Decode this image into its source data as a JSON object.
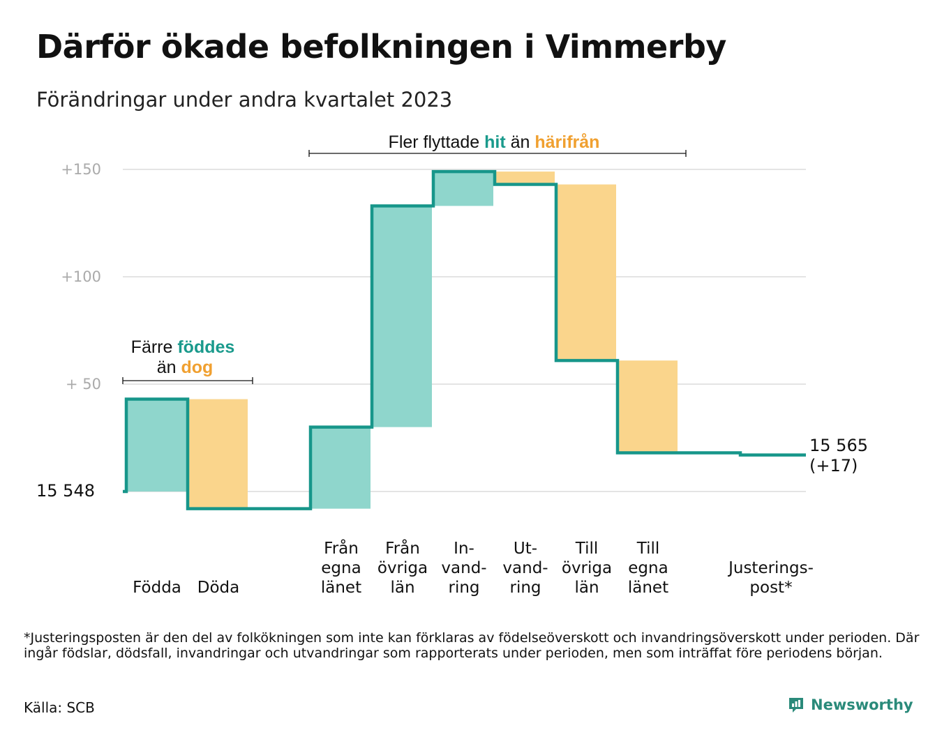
{
  "title": "Därför ökade befolkningen i Vimmerby",
  "subtitle": "Förändringar under andra kvartalet 2023",
  "chart_data": {
    "type": "waterfall",
    "start_value": 15548,
    "start_label": "15  548",
    "end_value": 15565,
    "end_label": [
      "15 565",
      "(+17)"
    ],
    "ylim": [
      -8,
      150
    ],
    "yticks": [
      {
        "value": 50,
        "label": "+  50"
      },
      {
        "value": 100,
        "label": "+100"
      },
      {
        "value": 150,
        "label": "+150"
      }
    ],
    "grid": true,
    "steps": [
      {
        "label": [
          "",
          "",
          "Födda"
        ],
        "change": 43,
        "kind": "in"
      },
      {
        "label": [
          "",
          "",
          "Döda"
        ],
        "change": -51,
        "kind": "out"
      },
      {
        "label": [],
        "change": 0,
        "kind": "gap"
      },
      {
        "label": [
          "Från",
          "egna",
          "länet"
        ],
        "change": 38,
        "kind": "in"
      },
      {
        "label": [
          "Från",
          "övriga",
          "län"
        ],
        "change": 103,
        "kind": "in"
      },
      {
        "label": [
          "In-",
          "vand-",
          "ring"
        ],
        "change": 16,
        "kind": "in"
      },
      {
        "label": [
          "Ut-",
          "vand-",
          "ring"
        ],
        "change": -6,
        "kind": "out"
      },
      {
        "label": [
          "Till",
          "övriga",
          "län"
        ],
        "change": -82,
        "kind": "out"
      },
      {
        "label": [
          "Till",
          "egna",
          "länet"
        ],
        "change": -43,
        "kind": "out"
      },
      {
        "label": [],
        "change": 0,
        "kind": "gap"
      },
      {
        "label": [
          "",
          "Justerings-",
          "post*"
        ],
        "change": -1,
        "kind": "adjust"
      }
    ],
    "annotations": {
      "births": {
        "line1_prefix": "Färre ",
        "line1_strong": "föddes",
        "line2_prefix": "än ",
        "line2_strong": "dog"
      },
      "moves": {
        "prefix": "Fler flyttade ",
        "strong1": "hit",
        "middle": " än ",
        "strong2": "härifrån"
      }
    },
    "colors": {
      "line": "#17968a",
      "in_fill": "#8fd6cc",
      "out_fill": "#fad58c",
      "in_text": "#1a9a8c",
      "out_text": "#f0a030",
      "grid": "#e4e4e4",
      "tick_text": "#aaaaaa"
    }
  },
  "footnote": "*Justeringsposten är den del av folkökningen som inte kan förklaras av födelseöverskott och invandringsöverskott under perioden. Där ingår födslar, dödsfall, invandringar och utvandringar som rapporterats under perioden, men som inträffat före periodens början.",
  "source": "Källa: SCB",
  "logo": {
    "text": "Newsworthy",
    "icon": "bar-chart-logo-icon"
  }
}
